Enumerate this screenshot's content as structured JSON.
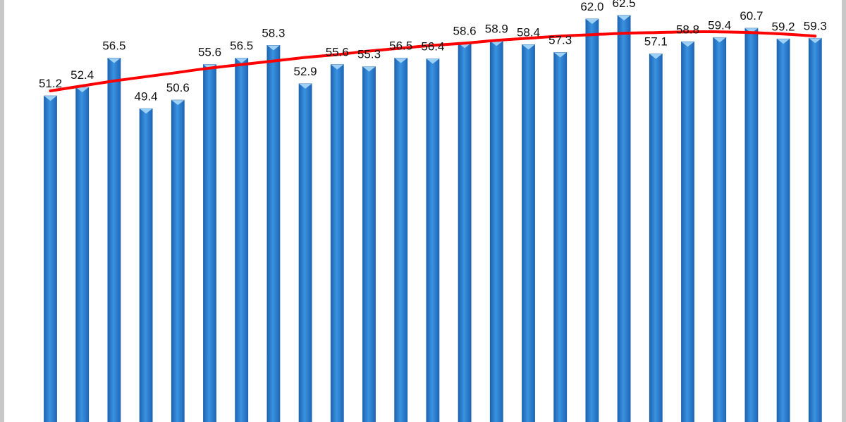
{
  "chart_data": {
    "type": "bar",
    "categories": [],
    "values": [
      51.2,
      52.4,
      56.5,
      49.4,
      50.6,
      55.6,
      56.5,
      58.3,
      52.9,
      55.6,
      55.3,
      56.5,
      56.4,
      58.6,
      58.9,
      58.4,
      57.3,
      62.0,
      62.5,
      57.1,
      58.8,
      59.4,
      60.7,
      59.2,
      59.3
    ],
    "labels": [
      "51.2",
      "52.4",
      "56.5",
      "49.4",
      "50.6",
      "55.6",
      "56.5",
      "58.3",
      "52.9",
      "55.6",
      "55.3",
      "56.5",
      "56.4",
      "58.6",
      "58.9",
      "58.4",
      "57.3",
      "62.0",
      "62.5",
      "57.1",
      "58.8",
      "59.4",
      "60.7",
      "59.2",
      "59.3"
    ],
    "trendline": {
      "type": "polynomial",
      "values": [
        51.9,
        52.6,
        53.3,
        53.9,
        54.5,
        55.1,
        55.6,
        56.1,
        56.6,
        57.0,
        57.5,
        57.9,
        58.3,
        58.6,
        59.0,
        59.3,
        59.6,
        59.8,
        60.0,
        60.1,
        60.2,
        60.2,
        60.1,
        59.9,
        59.6
      ],
      "color": "#ff0000"
    },
    "bar_color": "#2e86d6",
    "bar_edge_color": "#1c5fa8",
    "bar_top_color": "#9fd0f5",
    "xlabel": "",
    "ylabel": "",
    "title": "",
    "grid": false,
    "legend": "none"
  }
}
